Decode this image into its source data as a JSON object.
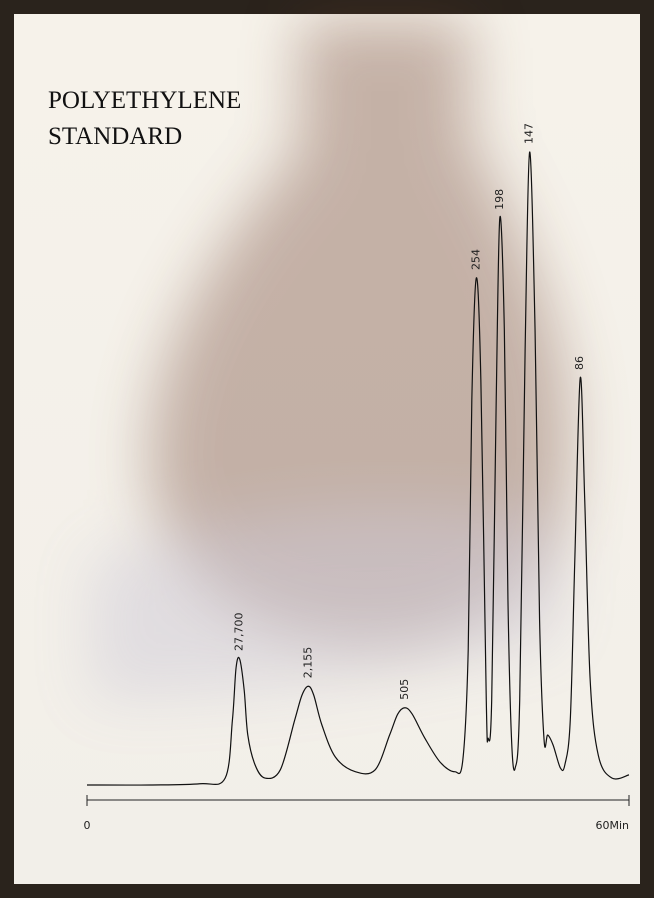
{
  "chart_data": {
    "type": "line",
    "title": "POLYETHYLENE STANDARD",
    "color": "#111111",
    "xlim": [
      0,
      60
    ],
    "xticks": [
      0,
      {
        "value": 60,
        "label": "60Min"
      }
    ],
    "ylim": [
      0,
      100
    ],
    "x": [
      0,
      7.0,
      12.5,
      15.3,
      16.1,
      16.5,
      16.9,
      17.4,
      17.8,
      18.6,
      19.7,
      21.4,
      23.0,
      23.8,
      24.5,
      25.1,
      26.0,
      27.5,
      29.7,
      31.9,
      33.5,
      34.4,
      35.2,
      36.0,
      37.4,
      39.1,
      40.7,
      41.6,
      42.2,
      42.6,
      43.1,
      43.6,
      44.2,
      44.4,
      44.8,
      45.3,
      45.7,
      46.2,
      46.6,
      47.0,
      47.4,
      47.9,
      48.5,
      49.0,
      49.6,
      50.1,
      50.6,
      51.0,
      51.6,
      52.4,
      52.9,
      53.5,
      54.0,
      54.6,
      55.1,
      55.7,
      56.6,
      58.1,
      60.0
    ],
    "values": [
      0,
      0,
      0.2,
      1.1,
      10.3,
      18.5,
      19.9,
      15,
      7.9,
      3.2,
      1.1,
      2.4,
      10.3,
      14.2,
      15.6,
      14.2,
      9.5,
      4.4,
      2.1,
      2.4,
      7.9,
      11.2,
      12.2,
      11.2,
      7.4,
      3.6,
      2.1,
      3.9,
      21.3,
      60.8,
      80.1,
      64.0,
      13.4,
      7.4,
      13.4,
      60.8,
      89.6,
      71.9,
      29.2,
      7.1,
      2.7,
      13.4,
      68.7,
      100,
      71.9,
      26.1,
      7.1,
      7.9,
      6.3,
      2.7,
      3.2,
      10.3,
      35.5,
      64.3,
      45.0,
      16.6,
      4.7,
      1.1,
      1.6
    ],
    "annotations": [
      {
        "text": "27,700",
        "x": 16.9,
        "y": 19.9
      },
      {
        "text": "2,155",
        "x": 24.5,
        "y": 15.6
      },
      {
        "text": "505",
        "x": 35.2,
        "y": 12.2
      },
      {
        "text": "254",
        "x": 43.1,
        "y": 80.1
      },
      {
        "text": "198",
        "x": 45.7,
        "y": 89.6
      },
      {
        "text": "147",
        "x": 49.0,
        "y": 100
      },
      {
        "text": "86",
        "x": 54.6,
        "y": 64.3
      }
    ]
  }
}
